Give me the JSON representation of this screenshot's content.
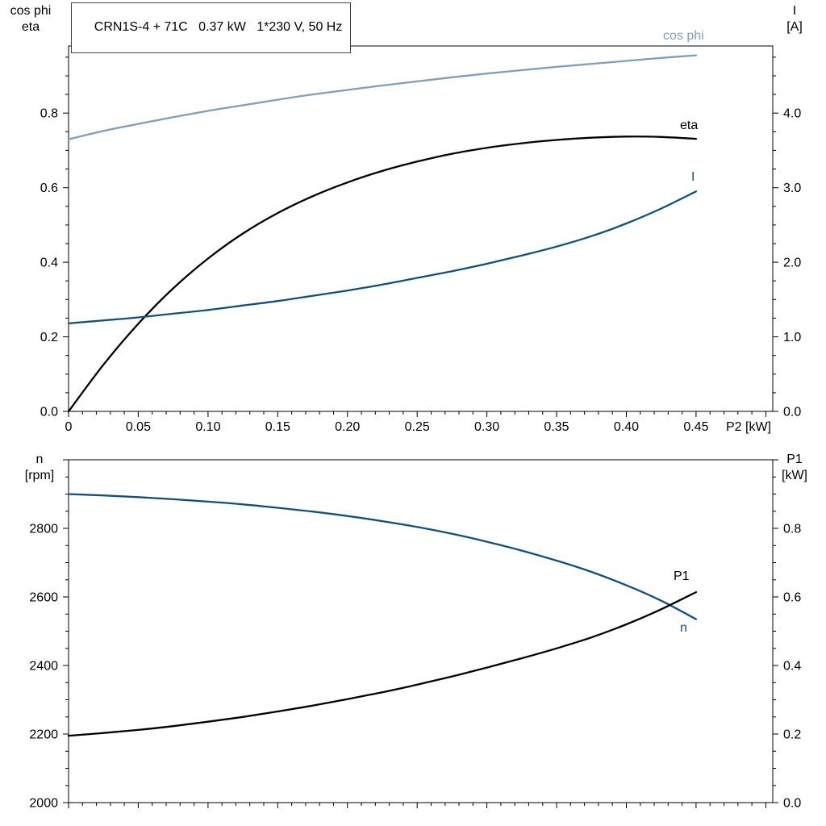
{
  "title": "CRN1S-4 + 71C   0.37 kW   1*230 V, 50 Hz",
  "colors": {
    "light_blue": "#7f9dbe",
    "dark_blue": "#134f7d",
    "black": "#000000"
  },
  "axis_corner_labels": {
    "top_left": [
      "cos phi",
      "eta"
    ],
    "top_right": [
      "I",
      "[A]"
    ],
    "bottom_left": [
      "n",
      "[rpm]"
    ],
    "bottom_right": [
      "P1",
      "[kW]"
    ]
  },
  "chart_data": [
    {
      "type": "line",
      "x_axis": {
        "label": "P2 [kW]",
        "min": 0,
        "max": 0.505,
        "major": 0.05,
        "minor": 0.01,
        "tick_values": [
          0,
          0.05,
          0.1,
          0.15,
          0.2,
          0.25,
          0.3,
          0.35,
          0.4,
          0.45
        ],
        "tick_labels": [
          "0",
          "0.05",
          "0.10",
          "0.15",
          "0.20",
          "0.25",
          "0.30",
          "0.35",
          "0.40",
          "0.45"
        ]
      },
      "left_axis": {
        "label": "cos phi / eta",
        "min": 0,
        "max": 0.98,
        "major": 0.2,
        "minor": 0.05,
        "tick_values": [
          0,
          0.2,
          0.4,
          0.6,
          0.8
        ],
        "tick_labels": [
          "0.0",
          "0.2",
          "0.4",
          "0.6",
          "0.8"
        ]
      },
      "right_axis": {
        "label": "I [A]",
        "min": 0,
        "max": 4.9,
        "major": 1.0,
        "minor": 0.25,
        "tick_values": [
          0,
          1,
          2,
          3,
          4
        ],
        "tick_labels": [
          "0.0",
          "1.0",
          "2.0",
          "3.0",
          "4.0"
        ]
      },
      "x_values": [
        0,
        0.025,
        0.05,
        0.075,
        0.1,
        0.125,
        0.15,
        0.175,
        0.2,
        0.225,
        0.25,
        0.275,
        0.3,
        0.325,
        0.35,
        0.375,
        0.4,
        0.425,
        0.45
      ],
      "series": [
        {
          "name": "cos phi",
          "axis": "left",
          "color_key": "light_blue",
          "values": [
            0.73,
            0.752,
            0.771,
            0.789,
            0.806,
            0.821,
            0.836,
            0.85,
            0.862,
            0.874,
            0.885,
            0.896,
            0.906,
            0.915,
            0.924,
            0.932,
            0.94,
            0.948,
            0.955
          ]
        },
        {
          "name": "eta",
          "axis": "left",
          "color_key": "black",
          "values": [
            0.0,
            0.125,
            0.235,
            0.33,
            0.41,
            0.477,
            0.532,
            0.577,
            0.614,
            0.645,
            0.67,
            0.691,
            0.707,
            0.719,
            0.728,
            0.734,
            0.737,
            0.736,
            0.731
          ]
        },
        {
          "name": "I",
          "axis": "right",
          "color_key": "dark_blue",
          "values": [
            1.18,
            1.22,
            1.26,
            1.31,
            1.36,
            1.42,
            1.48,
            1.55,
            1.62,
            1.7,
            1.79,
            1.88,
            1.98,
            2.09,
            2.21,
            2.35,
            2.52,
            2.72,
            2.95
          ]
        }
      ]
    },
    {
      "type": "line",
      "x_axis": {
        "label": "",
        "min": 0,
        "max": 0.505,
        "major": 0.05,
        "minor": 0.01,
        "tick_values": [],
        "tick_labels": []
      },
      "left_axis": {
        "label": "n [rpm]",
        "min": 2000,
        "max": 3000,
        "major": 200,
        "minor": 50,
        "tick_values": [
          2000,
          2200,
          2400,
          2600,
          2800
        ],
        "tick_labels": [
          "2000",
          "2200",
          "2400",
          "2600",
          "2800"
        ]
      },
      "right_axis": {
        "label": "P1 [kW]",
        "min": 0,
        "max": 1.0,
        "major": 0.2,
        "minor": 0.05,
        "tick_values": [
          0,
          0.2,
          0.4,
          0.6,
          0.8
        ],
        "tick_labels": [
          "0.0",
          "0.2",
          "0.4",
          "0.6",
          "0.8"
        ]
      },
      "x_values": [
        0,
        0.025,
        0.05,
        0.075,
        0.1,
        0.125,
        0.15,
        0.175,
        0.2,
        0.225,
        0.25,
        0.275,
        0.3,
        0.325,
        0.35,
        0.375,
        0.4,
        0.425,
        0.45
      ],
      "series": [
        {
          "name": "n",
          "axis": "left",
          "color_key": "dark_blue",
          "values": [
            2900,
            2896,
            2891,
            2885,
            2878,
            2870,
            2860,
            2849,
            2836,
            2821,
            2804,
            2784,
            2761,
            2735,
            2706,
            2673,
            2634,
            2589,
            2535
          ]
        },
        {
          "name": "P1",
          "axis": "right",
          "color_key": "black",
          "values": [
            0.195,
            0.203,
            0.212,
            0.223,
            0.236,
            0.25,
            0.266,
            0.283,
            0.302,
            0.322,
            0.344,
            0.368,
            0.394,
            0.421,
            0.45,
            0.482,
            0.52,
            0.564,
            0.614
          ]
        }
      ]
    }
  ]
}
